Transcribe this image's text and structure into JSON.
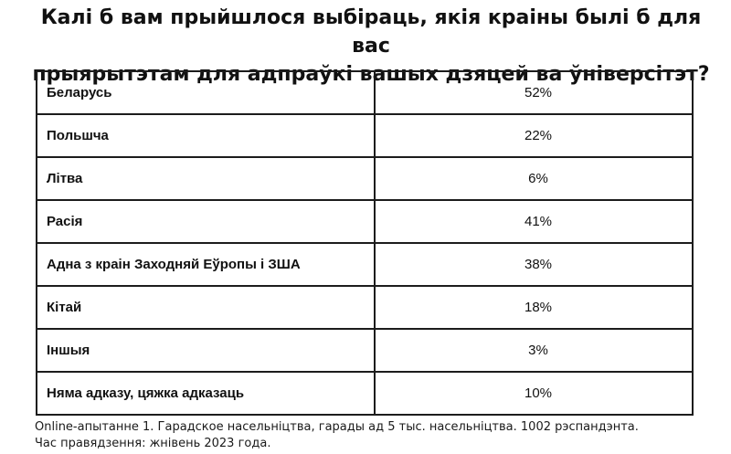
{
  "title_line1": "Калі б вам прыйшлося выбіраць, якія краіны былі б для вас",
  "title_line2": "прыярытэтам для адпраўкі вашых дзяцей ва ўніверсітэт?",
  "chart_data": {
    "type": "table",
    "title": "Калі б вам прыйшлося выбіраць, якія краіны былі б для вас прыярытэтам для адпраўкі вашых дзяцей ва ўніверсітэт?",
    "categories": [
      "Беларусь",
      "Польшча",
      "Літва",
      "Расія",
      "Адна з краін Заходняй Еўропы і ЗША",
      "Кітай",
      "Іншыя",
      "Няма адказу, цяжка адказаць"
    ],
    "values": [
      52,
      22,
      6,
      41,
      38,
      18,
      3,
      10
    ],
    "value_labels": [
      "52%",
      "22%",
      "6%",
      "41%",
      "38%",
      "18%",
      "3%",
      "10%"
    ],
    "unit": "%"
  },
  "footnote_line1": "Online-апытанне 1. Гарадское насельніцтва, гарады ад 5 тыс. насельніцтва. 1002 рэспандэнта.",
  "footnote_line2": "Час правядзення: жнівень 2023 года."
}
